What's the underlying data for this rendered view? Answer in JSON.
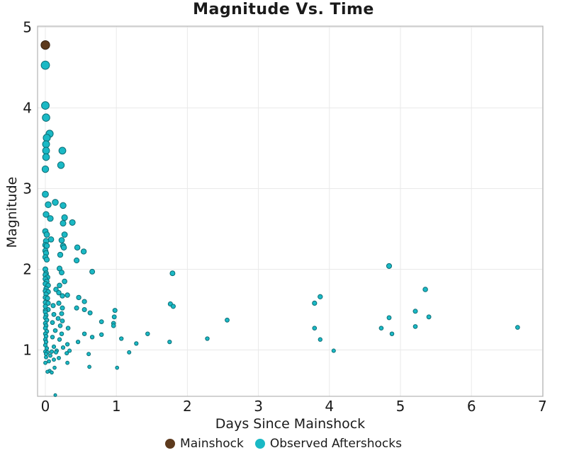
{
  "title": "Magnitude Vs. Time",
  "xlabel": "Days Since Mainshock",
  "ylabel": "Magnitude",
  "legend": [
    {
      "label": "Mainshock",
      "color": "#5d3a1d"
    },
    {
      "label": "Observed Aftershocks",
      "color": "#1ab9c5"
    }
  ],
  "chart_data": {
    "type": "scatter",
    "title": "Magnitude Vs. Time",
    "xlabel": "Days Since Mainshock",
    "ylabel": "Magnitude",
    "xlim": [
      -0.11,
      7.0
    ],
    "ylim": [
      0.43,
      5.06
    ],
    "x_ticks": [
      0,
      1,
      2,
      3,
      4,
      5,
      6,
      7
    ],
    "y_ticks": [
      1,
      2,
      3,
      4,
      5
    ],
    "grid": true,
    "legend_position": "bottom-center",
    "marker_size_rule": "radius_px = 1.6 + 0.95 * magnitude",
    "colors": {
      "grid": "#e9e9e9",
      "frame": "#b3b3b3",
      "text": "#1a1a1a",
      "mainshock_fill": "#5d3a1d",
      "mainshock_edge": "#33200f",
      "aftershock_fill": "#1ab9c5",
      "aftershock_edge": "#0d6d75"
    },
    "series": [
      {
        "name": "Observed Aftershocks",
        "color": "#1ab9c5",
        "edge": "#0d6d75",
        "points": [
          [
            0.0,
            4.53
          ],
          [
            0.0,
            4.03
          ],
          [
            0.01,
            3.88
          ],
          [
            0.06,
            3.68
          ],
          [
            0.02,
            3.63
          ],
          [
            0.01,
            3.55
          ],
          [
            0.01,
            3.47
          ],
          [
            0.24,
            3.47
          ],
          [
            0.01,
            3.39
          ],
          [
            0.22,
            3.29
          ],
          [
            0.0,
            3.24
          ],
          [
            0.0,
            2.93
          ],
          [
            0.14,
            2.83
          ],
          [
            0.04,
            2.8
          ],
          [
            0.25,
            2.79
          ],
          [
            0.01,
            2.68
          ],
          [
            0.27,
            2.64
          ],
          [
            0.07,
            2.63
          ],
          [
            0.38,
            2.58
          ],
          [
            0.25,
            2.57
          ],
          [
            0.0,
            2.47
          ],
          [
            0.02,
            2.43
          ],
          [
            0.27,
            2.43
          ],
          [
            0.08,
            2.37
          ],
          [
            0.23,
            2.36
          ],
          [
            0.01,
            2.35
          ],
          [
            0.0,
            2.3
          ],
          [
            0.02,
            2.29
          ],
          [
            0.25,
            2.29
          ],
          [
            0.26,
            2.27
          ],
          [
            0.45,
            2.27
          ],
          [
            0.0,
            2.23
          ],
          [
            0.54,
            2.22
          ],
          [
            0.01,
            2.2
          ],
          [
            0.21,
            2.18
          ],
          [
            0.0,
            2.15
          ],
          [
            0.02,
            2.12
          ],
          [
            0.44,
            2.11
          ],
          [
            4.84,
            2.04
          ],
          [
            0.2,
            2.01
          ],
          [
            0.0,
            2.0
          ],
          [
            0.66,
            1.97
          ],
          [
            0.23,
            1.96
          ],
          [
            1.79,
            1.95
          ],
          [
            0.01,
            1.95
          ],
          [
            0.0,
            1.93
          ],
          [
            0.03,
            1.9
          ],
          [
            0.0,
            1.88
          ],
          [
            0.27,
            1.85
          ],
          [
            0.02,
            1.85
          ],
          [
            0.0,
            1.82
          ],
          [
            0.04,
            1.8
          ],
          [
            0.2,
            1.8
          ],
          [
            0.01,
            1.76
          ],
          [
            0.15,
            1.75
          ],
          [
            5.35,
            1.75
          ],
          [
            0.0,
            1.73
          ],
          [
            0.04,
            1.72
          ],
          [
            0.19,
            1.71
          ],
          [
            0.01,
            1.69
          ],
          [
            0.31,
            1.68
          ],
          [
            0.24,
            1.67
          ],
          [
            3.87,
            1.66
          ],
          [
            0.0,
            1.65
          ],
          [
            0.47,
            1.65
          ],
          [
            0.03,
            1.64
          ],
          [
            0.55,
            1.6
          ],
          [
            0.0,
            1.59
          ],
          [
            0.04,
            1.58
          ],
          [
            0.19,
            1.58
          ],
          [
            3.79,
            1.58
          ],
          [
            1.76,
            1.57
          ],
          [
            0.11,
            1.55
          ],
          [
            0.0,
            1.54
          ],
          [
            1.8,
            1.54
          ],
          [
            0.24,
            1.52
          ],
          [
            0.44,
            1.52
          ],
          [
            0.04,
            1.5
          ],
          [
            0.55,
            1.5
          ],
          [
            0.0,
            1.49
          ],
          [
            0.98,
            1.49
          ],
          [
            5.21,
            1.48
          ],
          [
            0.0,
            1.47
          ],
          [
            0.63,
            1.46
          ],
          [
            0.23,
            1.45
          ],
          [
            0.12,
            1.44
          ],
          [
            0.01,
            1.43
          ],
          [
            0.97,
            1.41
          ],
          [
            5.4,
            1.41
          ],
          [
            0.0,
            1.4
          ],
          [
            4.84,
            1.4
          ],
          [
            0.18,
            1.39
          ],
          [
            0.02,
            1.37
          ],
          [
            2.56,
            1.37
          ],
          [
            0.24,
            1.36
          ],
          [
            0.79,
            1.35
          ],
          [
            0.1,
            1.34
          ],
          [
            0.0,
            1.33
          ],
          [
            0.96,
            1.33
          ],
          [
            0.21,
            1.3
          ],
          [
            0.01,
            1.3
          ],
          [
            0.96,
            1.3
          ],
          [
            5.21,
            1.29
          ],
          [
            6.65,
            1.28
          ],
          [
            0.32,
            1.27
          ],
          [
            0.0,
            1.27
          ],
          [
            3.79,
            1.27
          ],
          [
            4.73,
            1.27
          ],
          [
            0.14,
            1.24
          ],
          [
            0.02,
            1.23
          ],
          [
            0.23,
            1.2
          ],
          [
            0.0,
            1.2
          ],
          [
            0.55,
            1.2
          ],
          [
            1.44,
            1.2
          ],
          [
            4.88,
            1.2
          ],
          [
            0.79,
            1.19
          ],
          [
            0.01,
            1.17
          ],
          [
            0.1,
            1.16
          ],
          [
            0.66,
            1.16
          ],
          [
            2.28,
            1.14
          ],
          [
            1.07,
            1.14
          ],
          [
            0.0,
            1.13
          ],
          [
            0.2,
            1.13
          ],
          [
            3.87,
            1.13
          ],
          [
            0.46,
            1.1
          ],
          [
            0.01,
            1.1
          ],
          [
            1.75,
            1.1
          ],
          [
            1.28,
            1.08
          ],
          [
            0.31,
            1.07
          ],
          [
            0.0,
            1.06
          ],
          [
            0.12,
            1.04
          ],
          [
            0.25,
            1.03
          ],
          [
            0.02,
            1.02
          ],
          [
            0.34,
            0.99
          ],
          [
            4.06,
            0.99
          ],
          [
            0.16,
            0.99
          ],
          [
            0.09,
            0.98
          ],
          [
            0.0,
            0.98
          ],
          [
            0.15,
            0.97
          ],
          [
            0.03,
            0.97
          ],
          [
            1.18,
            0.97
          ],
          [
            0.3,
            0.96
          ],
          [
            0.01,
            0.95
          ],
          [
            0.61,
            0.95
          ],
          [
            0.07,
            0.93
          ],
          [
            0.01,
            0.91
          ],
          [
            0.19,
            0.9
          ],
          [
            0.12,
            0.88
          ],
          [
            0.05,
            0.86
          ],
          [
            0.0,
            0.84
          ],
          [
            0.31,
            0.84
          ],
          [
            0.62,
            0.79
          ],
          [
            0.13,
            0.78
          ],
          [
            1.01,
            0.78
          ],
          [
            0.06,
            0.74
          ],
          [
            0.03,
            0.73
          ],
          [
            0.09,
            0.72
          ],
          [
            0.14,
            0.44
          ]
        ]
      },
      {
        "name": "Mainshock",
        "color": "#5d3a1d",
        "edge": "#33200f",
        "points": [
          [
            0.0,
            4.78
          ]
        ]
      }
    ]
  }
}
